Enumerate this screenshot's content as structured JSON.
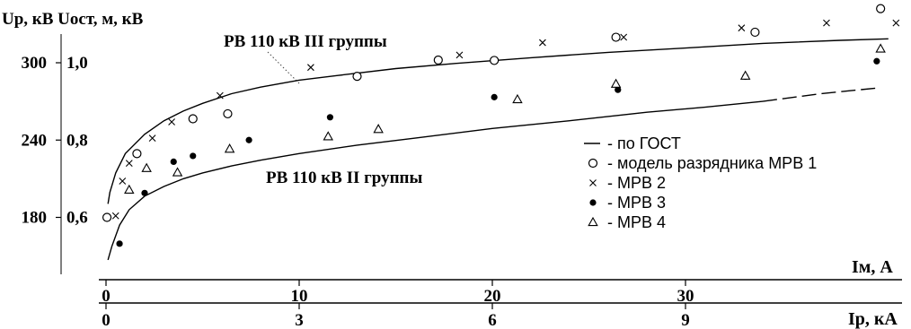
{
  "chart_data": {
    "type": "scatter",
    "y_axis_label": "Up, кВ Uост, м, кВ",
    "x_axis_top": {
      "label": "Iм, А",
      "ticks": [
        "0",
        "10",
        "20",
        "30"
      ],
      "range": [
        0,
        41
      ]
    },
    "x_axis_bottom": {
      "label": "Iр, кА",
      "ticks": [
        "0",
        "3",
        "6",
        "9"
      ],
      "range": [
        0,
        12.3
      ]
    },
    "y_ticks_left": [
      "180",
      "240",
      "300"
    ],
    "y_ticks_right": [
      "0,6",
      "0,8",
      "1,0"
    ],
    "y_range": [
      0.5,
      1.18
    ],
    "grid": false,
    "curve_labels": [
      "РВ 110 кВ III группы",
      "РВ 110 кВ II группы"
    ],
    "curves": [
      {
        "label": "РВ 110 кВ III группы",
        "x": [
          0.1,
          0.2,
          0.5,
          1,
          2,
          3,
          4,
          5,
          6.5,
          8,
          10,
          12,
          15,
          18,
          22,
          26,
          30,
          34,
          38,
          40.5
        ],
        "y": [
          0.635,
          0.665,
          0.715,
          0.765,
          0.815,
          0.85,
          0.875,
          0.895,
          0.92,
          0.937,
          0.955,
          0.967,
          0.985,
          0.998,
          1.013,
          1.027,
          1.038,
          1.05,
          1.058,
          1.062
        ]
      },
      {
        "label": "РВ 110 кВ II группы",
        "x": [
          0.1,
          0.3,
          0.7,
          1.2,
          2,
          3,
          4,
          5,
          6.5,
          8,
          10,
          13,
          16,
          20,
          24,
          28,
          31,
          34,
          37,
          40
        ],
        "y": [
          0.49,
          0.525,
          0.58,
          0.62,
          0.655,
          0.68,
          0.7,
          0.715,
          0.733,
          0.748,
          0.765,
          0.787,
          0.805,
          0.83,
          0.85,
          0.872,
          0.885,
          0.9,
          0.92,
          0.935
        ],
        "dashed_from_x": 34
      }
    ],
    "series": [
      {
        "name": "модель разрядника МРВ 1",
        "marker": "circle",
        "x": [
          0.05,
          1.6,
          4.5,
          6.3,
          13,
          17.2,
          20.1,
          26.4,
          33.6,
          40.1
        ],
        "y": [
          0.6,
          0.765,
          0.855,
          0.868,
          0.965,
          1.007,
          1.006,
          1.066,
          1.079,
          1.14
        ]
      },
      {
        "name": "МРВ 2",
        "marker": "cross",
        "x": [
          0.5,
          0.85,
          1.2,
          2.4,
          3.4,
          5.9,
          10.6,
          18.3,
          22.6,
          26.8,
          32.9,
          37.3,
          40.9
        ],
        "y": [
          0.604,
          0.694,
          0.74,
          0.805,
          0.847,
          0.915,
          0.988,
          1.02,
          1.052,
          1.066,
          1.09,
          1.103,
          1.103
        ]
      },
      {
        "name": "МРВ 3",
        "marker": "dot",
        "x": [
          0.7,
          2.0,
          3.5,
          4.5,
          7.4,
          11.6,
          20.1,
          26.5,
          33.1,
          39.9
        ],
        "y": [
          0.532,
          0.663,
          0.744,
          0.759,
          0.8,
          0.859,
          0.911,
          0.93,
          0.964,
          1.004
        ]
      },
      {
        "name": "МРВ 4",
        "marker": "triangle",
        "x": [
          1.2,
          2.1,
          3.7,
          6.4,
          11.5,
          14.1,
          21.3,
          26.4,
          33.1,
          40.1
        ],
        "y": [
          0.671,
          0.727,
          0.716,
          0.777,
          0.809,
          0.828,
          0.905,
          0.945,
          0.966,
          1.036
        ]
      }
    ],
    "legend": {
      "position": "right",
      "entries": [
        {
          "symbol": "line",
          "text": "- по ГОСТ"
        },
        {
          "symbol": "circle",
          "text": "- модель разрядника МРВ 1"
        },
        {
          "symbol": "cross",
          "text": "- МРВ 2"
        },
        {
          "symbol": "dot",
          "text": "- МРВ 3"
        },
        {
          "symbol": "triangle",
          "text": "- МРВ 4"
        }
      ]
    }
  }
}
